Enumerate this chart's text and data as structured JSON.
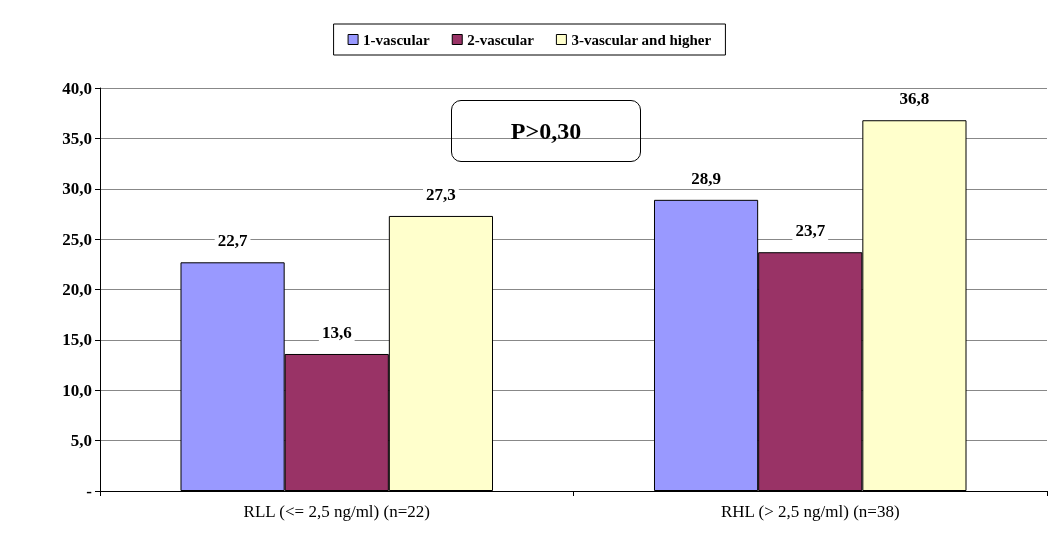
{
  "chart_data": {
    "type": "bar",
    "categories": [
      "RLL (<= 2,5 ng/ml) (n=22)",
      "RHL (> 2,5 ng/ml) (n=38)"
    ],
    "series": [
      {
        "name": "1-vascular",
        "color": "#9999ff",
        "values": [
          22.7,
          28.9
        ],
        "value_labels": [
          "22,7",
          "28,9"
        ]
      },
      {
        "name": "2-vascular",
        "color": "#993366",
        "values": [
          13.6,
          23.7
        ],
        "value_labels": [
          "13,6",
          "23,7"
        ]
      },
      {
        "name": "3-vascular and higher",
        "color": "#ffffcc",
        "values": [
          27.3,
          36.8
        ],
        "value_labels": [
          "27,3",
          "36,8"
        ]
      }
    ],
    "ylim": [
      0,
      40
    ],
    "yticks": [
      {
        "value": 0,
        "label": "-"
      },
      {
        "value": 5,
        "label": "5,0"
      },
      {
        "value": 10,
        "label": "10,0"
      },
      {
        "value": 15,
        "label": "15,0"
      },
      {
        "value": 20,
        "label": "20,0"
      },
      {
        "value": 25,
        "label": "25,0"
      },
      {
        "value": 30,
        "label": "30,0"
      },
      {
        "value": 35,
        "label": "35,0"
      },
      {
        "value": 40,
        "label": "40,0"
      }
    ],
    "grid": "y",
    "legend": "top",
    "annotations": [
      "P>0,30"
    ]
  }
}
